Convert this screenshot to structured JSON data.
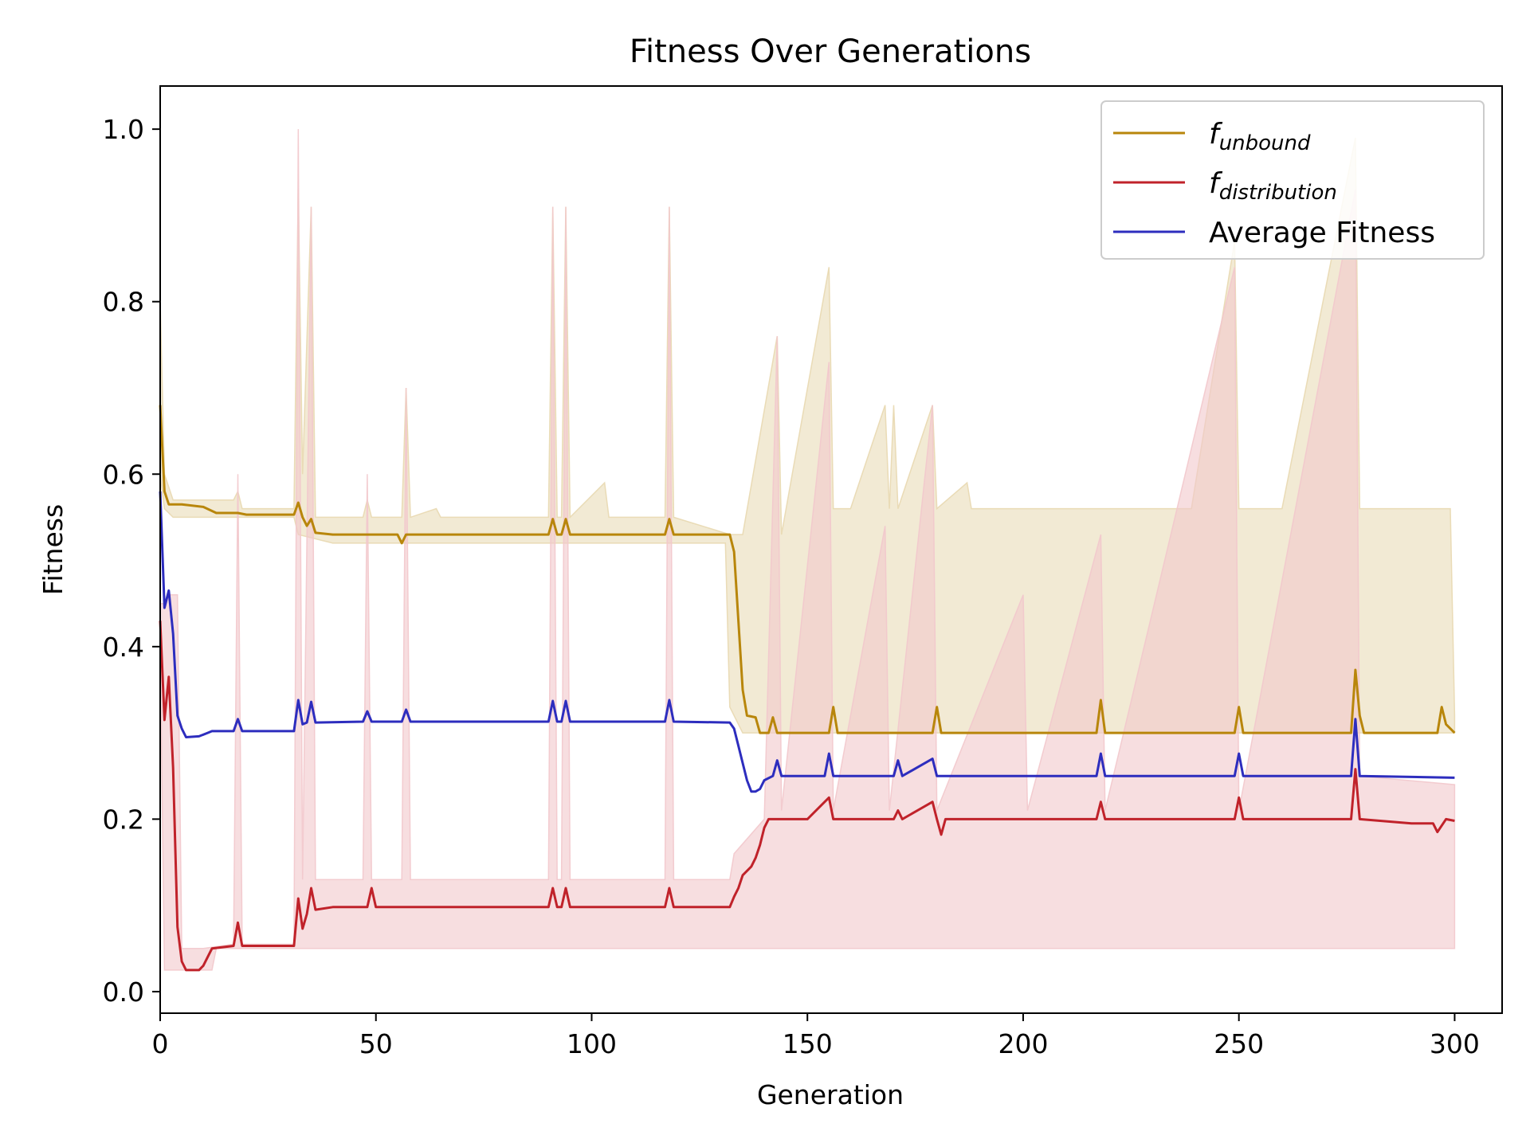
{
  "chart_data": {
    "type": "line",
    "title": "Fitness Over Generations",
    "xlabel": "Generation",
    "ylabel": "Fitness",
    "xlim": [
      0,
      311
    ],
    "ylim": [
      -0.025,
      1.05
    ],
    "x_ticks": [
      0,
      50,
      100,
      150,
      200,
      250,
      300
    ],
    "y_ticks": [
      "0.0",
      "0.2",
      "0.4",
      "0.6",
      "0.8",
      "1.0"
    ],
    "grid": false,
    "legend": {
      "placement": "top-right"
    },
    "series": [
      {
        "name": "f_unbound",
        "legend_base": "f",
        "legend_sub": "unbound",
        "color": "#b8860b",
        "knots": [
          [
            0,
            0.68
          ],
          [
            1,
            0.58
          ],
          [
            2,
            0.565
          ],
          [
            5,
            0.565
          ],
          [
            10,
            0.562
          ],
          [
            13,
            0.555
          ],
          [
            18,
            0.555
          ],
          [
            20,
            0.553
          ],
          [
            31,
            0.553
          ],
          [
            32,
            0.567
          ],
          [
            33,
            0.55
          ],
          [
            34,
            0.54
          ],
          [
            35,
            0.548
          ],
          [
            36,
            0.532
          ],
          [
            40,
            0.53
          ],
          [
            55,
            0.53
          ],
          [
            56,
            0.52
          ],
          [
            57,
            0.53
          ],
          [
            90,
            0.53
          ],
          [
            91,
            0.548
          ],
          [
            92,
            0.53
          ],
          [
            93,
            0.53
          ],
          [
            94,
            0.548
          ],
          [
            95,
            0.53
          ],
          [
            117,
            0.53
          ],
          [
            118,
            0.548
          ],
          [
            119,
            0.53
          ],
          [
            131,
            0.53
          ],
          [
            132,
            0.53
          ],
          [
            133,
            0.51
          ],
          [
            134,
            0.43
          ],
          [
            135,
            0.35
          ],
          [
            136,
            0.32
          ],
          [
            138,
            0.318
          ],
          [
            139,
            0.3
          ],
          [
            141,
            0.3
          ],
          [
            142,
            0.318
          ],
          [
            143,
            0.3
          ],
          [
            155,
            0.3
          ],
          [
            156,
            0.33
          ],
          [
            157,
            0.3
          ],
          [
            179,
            0.3
          ],
          [
            180,
            0.33
          ],
          [
            181,
            0.3
          ],
          [
            217,
            0.3
          ],
          [
            218,
            0.338
          ],
          [
            219,
            0.3
          ],
          [
            249,
            0.3
          ],
          [
            250,
            0.33
          ],
          [
            251,
            0.3
          ],
          [
            276,
            0.3
          ],
          [
            277,
            0.373
          ],
          [
            278,
            0.32
          ],
          [
            279,
            0.3
          ],
          [
            296,
            0.3
          ],
          [
            297,
            0.33
          ],
          [
            298,
            0.31
          ],
          [
            300,
            0.3
          ]
        ]
      },
      {
        "name": "f_distribution",
        "legend_base": "f",
        "legend_sub": "distribution",
        "color": "#c0222a",
        "knots": [
          [
            0,
            0.43
          ],
          [
            1,
            0.315
          ],
          [
            2,
            0.365
          ],
          [
            3,
            0.26
          ],
          [
            4,
            0.075
          ],
          [
            5,
            0.035
          ],
          [
            6,
            0.025
          ],
          [
            9,
            0.025
          ],
          [
            10,
            0.03
          ],
          [
            12,
            0.05
          ],
          [
            17,
            0.053
          ],
          [
            18,
            0.08
          ],
          [
            19,
            0.053
          ],
          [
            31,
            0.053
          ],
          [
            32,
            0.108
          ],
          [
            33,
            0.073
          ],
          [
            34,
            0.09
          ],
          [
            35,
            0.12
          ],
          [
            36,
            0.095
          ],
          [
            40,
            0.098
          ],
          [
            48,
            0.098
          ],
          [
            49,
            0.12
          ],
          [
            50,
            0.098
          ],
          [
            90,
            0.098
          ],
          [
            91,
            0.12
          ],
          [
            92,
            0.098
          ],
          [
            93,
            0.098
          ],
          [
            94,
            0.12
          ],
          [
            95,
            0.098
          ],
          [
            117,
            0.098
          ],
          [
            118,
            0.12
          ],
          [
            119,
            0.098
          ],
          [
            132,
            0.098
          ],
          [
            133,
            0.11
          ],
          [
            134,
            0.12
          ],
          [
            135,
            0.135
          ],
          [
            137,
            0.145
          ],
          [
            138,
            0.155
          ],
          [
            139,
            0.17
          ],
          [
            140,
            0.19
          ],
          [
            141,
            0.2
          ],
          [
            150,
            0.2
          ],
          [
            155,
            0.225
          ],
          [
            156,
            0.2
          ],
          [
            170,
            0.2
          ],
          [
            171,
            0.21
          ],
          [
            172,
            0.2
          ],
          [
            179,
            0.22
          ],
          [
            180,
            0.2
          ],
          [
            181,
            0.182
          ],
          [
            182,
            0.2
          ],
          [
            200,
            0.2
          ],
          [
            217,
            0.2
          ],
          [
            218,
            0.22
          ],
          [
            219,
            0.2
          ],
          [
            249,
            0.2
          ],
          [
            250,
            0.225
          ],
          [
            251,
            0.2
          ],
          [
            276,
            0.2
          ],
          [
            277,
            0.258
          ],
          [
            278,
            0.2
          ],
          [
            290,
            0.195
          ],
          [
            295,
            0.195
          ],
          [
            296,
            0.185
          ],
          [
            298,
            0.2
          ],
          [
            300,
            0.198
          ]
        ]
      },
      {
        "name": "Average Fitness",
        "legend_base": "Average Fitness",
        "legend_sub": "",
        "color": "#2d2dbe",
        "knots": [
          [
            0,
            0.58
          ],
          [
            1,
            0.445
          ],
          [
            2,
            0.465
          ],
          [
            3,
            0.415
          ],
          [
            4,
            0.32
          ],
          [
            5,
            0.305
          ],
          [
            6,
            0.295
          ],
          [
            9,
            0.296
          ],
          [
            11,
            0.3
          ],
          [
            12,
            0.302
          ],
          [
            17,
            0.302
          ],
          [
            18,
            0.316
          ],
          [
            19,
            0.302
          ],
          [
            31,
            0.302
          ],
          [
            32,
            0.338
          ],
          [
            33,
            0.31
          ],
          [
            34,
            0.312
          ],
          [
            35,
            0.336
          ],
          [
            36,
            0.312
          ],
          [
            47,
            0.313
          ],
          [
            48,
            0.325
          ],
          [
            49,
            0.313
          ],
          [
            56,
            0.313
          ],
          [
            57,
            0.327
          ],
          [
            58,
            0.313
          ],
          [
            90,
            0.313
          ],
          [
            91,
            0.337
          ],
          [
            92,
            0.313
          ],
          [
            93,
            0.313
          ],
          [
            94,
            0.337
          ],
          [
            95,
            0.313
          ],
          [
            117,
            0.313
          ],
          [
            118,
            0.338
          ],
          [
            119,
            0.313
          ],
          [
            132,
            0.312
          ],
          [
            133,
            0.305
          ],
          [
            134,
            0.285
          ],
          [
            135,
            0.265
          ],
          [
            136,
            0.245
          ],
          [
            137,
            0.232
          ],
          [
            138,
            0.232
          ],
          [
            139,
            0.235
          ],
          [
            140,
            0.245
          ],
          [
            142,
            0.25
          ],
          [
            143,
            0.268
          ],
          [
            144,
            0.25
          ],
          [
            154,
            0.25
          ],
          [
            155,
            0.276
          ],
          [
            156,
            0.25
          ],
          [
            170,
            0.25
          ],
          [
            171,
            0.268
          ],
          [
            172,
            0.25
          ],
          [
            179,
            0.27
          ],
          [
            180,
            0.25
          ],
          [
            217,
            0.25
          ],
          [
            218,
            0.276
          ],
          [
            219,
            0.25
          ],
          [
            249,
            0.25
          ],
          [
            250,
            0.276
          ],
          [
            251,
            0.25
          ],
          [
            276,
            0.25
          ],
          [
            277,
            0.316
          ],
          [
            278,
            0.25
          ],
          [
            300,
            0.248
          ]
        ]
      }
    ],
    "bands": [
      {
        "series": "f_unbound",
        "color": "#e8d8b0",
        "upper": [
          [
            0,
            0.8
          ],
          [
            1,
            0.6
          ],
          [
            3,
            0.57
          ],
          [
            17,
            0.57
          ],
          [
            18,
            0.58
          ],
          [
            19,
            0.56
          ],
          [
            31,
            0.56
          ],
          [
            32,
            0.93
          ],
          [
            33,
            0.6
          ],
          [
            35,
            0.91
          ],
          [
            36,
            0.55
          ],
          [
            47,
            0.55
          ],
          [
            48,
            0.57
          ],
          [
            49,
            0.55
          ],
          [
            56,
            0.55
          ],
          [
            57,
            0.7
          ],
          [
            58,
            0.55
          ],
          [
            64,
            0.56
          ],
          [
            65,
            0.55
          ],
          [
            90,
            0.55
          ],
          [
            91,
            0.91
          ],
          [
            92,
            0.55
          ],
          [
            93,
            0.55
          ],
          [
            94,
            0.91
          ],
          [
            95,
            0.55
          ],
          [
            103,
            0.59
          ],
          [
            104,
            0.55
          ],
          [
            117,
            0.55
          ],
          [
            118,
            0.91
          ],
          [
            119,
            0.55
          ],
          [
            132,
            0.53
          ],
          [
            135,
            0.53
          ],
          [
            143,
            0.76
          ],
          [
            144,
            0.53
          ],
          [
            155,
            0.84
          ],
          [
            156,
            0.56
          ],
          [
            160,
            0.56
          ],
          [
            168,
            0.68
          ],
          [
            169,
            0.56
          ],
          [
            170,
            0.68
          ],
          [
            171,
            0.56
          ],
          [
            179,
            0.68
          ],
          [
            180,
            0.56
          ],
          [
            187,
            0.59
          ],
          [
            188,
            0.56
          ],
          [
            200,
            0.56
          ],
          [
            209,
            0.56
          ],
          [
            218,
            0.56
          ],
          [
            239,
            0.56
          ],
          [
            249,
            0.87
          ],
          [
            250,
            0.56
          ],
          [
            260,
            0.56
          ],
          [
            277,
            0.99
          ],
          [
            278,
            0.56
          ],
          [
            290,
            0.56
          ],
          [
            299,
            0.56
          ],
          [
            300,
            0.32
          ]
        ],
        "lower": [
          [
            0,
            0.6
          ],
          [
            1,
            0.56
          ],
          [
            3,
            0.55
          ],
          [
            31,
            0.55
          ],
          [
            32,
            0.53
          ],
          [
            40,
            0.52
          ],
          [
            131,
            0.52
          ],
          [
            132,
            0.33
          ],
          [
            135,
            0.3
          ],
          [
            300,
            0.3
          ]
        ]
      },
      {
        "series": "f_distribution",
        "color": "#f2c8cc",
        "upper": [
          [
            0,
            0.45
          ],
          [
            1,
            0.45
          ],
          [
            2,
            0.46
          ],
          [
            4,
            0.46
          ],
          [
            5,
            0.05
          ],
          [
            10,
            0.05
          ],
          [
            17,
            0.055
          ],
          [
            18,
            0.6
          ],
          [
            19,
            0.055
          ],
          [
            31,
            0.055
          ],
          [
            32,
            1.0
          ],
          [
            33,
            0.13
          ],
          [
            35,
            0.91
          ],
          [
            36,
            0.13
          ],
          [
            47,
            0.13
          ],
          [
            48,
            0.6
          ],
          [
            49,
            0.13
          ],
          [
            56,
            0.13
          ],
          [
            57,
            0.7
          ],
          [
            58,
            0.13
          ],
          [
            90,
            0.13
          ],
          [
            91,
            0.91
          ],
          [
            92,
            0.13
          ],
          [
            93,
            0.13
          ],
          [
            94,
            0.91
          ],
          [
            95,
            0.13
          ],
          [
            117,
            0.13
          ],
          [
            118,
            0.91
          ],
          [
            119,
            0.13
          ],
          [
            132,
            0.13
          ],
          [
            133,
            0.16
          ],
          [
            140,
            0.2
          ],
          [
            143,
            0.76
          ],
          [
            144,
            0.21
          ],
          [
            155,
            0.73
          ],
          [
            156,
            0.21
          ],
          [
            168,
            0.54
          ],
          [
            169,
            0.21
          ],
          [
            179,
            0.68
          ],
          [
            180,
            0.21
          ],
          [
            200,
            0.46
          ],
          [
            201,
            0.21
          ],
          [
            218,
            0.53
          ],
          [
            219,
            0.21
          ],
          [
            249,
            0.84
          ],
          [
            250,
            0.21
          ],
          [
            277,
            0.93
          ],
          [
            278,
            0.25
          ],
          [
            300,
            0.24
          ]
        ],
        "lower": [
          [
            0,
            0.4
          ],
          [
            1,
            0.025
          ],
          [
            12,
            0.025
          ],
          [
            13,
            0.05
          ],
          [
            31,
            0.05
          ],
          [
            32,
            0.05
          ],
          [
            133,
            0.05
          ],
          [
            140,
            0.05
          ],
          [
            300,
            0.05
          ]
        ]
      }
    ]
  }
}
